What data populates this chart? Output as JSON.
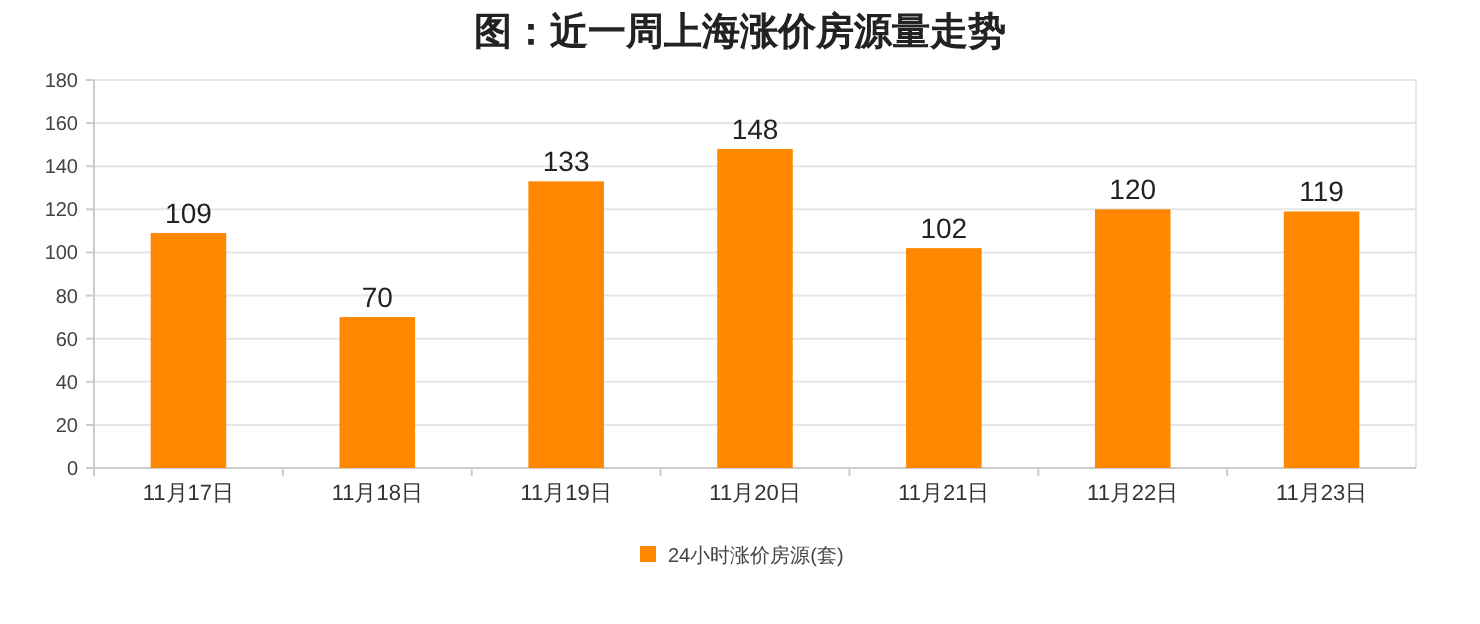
{
  "chart_data": {
    "type": "bar",
    "title": "图：近一周上海涨价房源量走势",
    "categories": [
      "11月17日",
      "11月18日",
      "11月19日",
      "11月20日",
      "11月21日",
      "11月22日",
      "11月23日"
    ],
    "series": [
      {
        "name": "24小时涨价房源(套)",
        "color": "#ff8800",
        "values": [
          109,
          70,
          133,
          148,
          102,
          120,
          119
        ]
      }
    ],
    "ylim": [
      0,
      180
    ],
    "yticks": [
      0,
      20,
      40,
      60,
      80,
      100,
      120,
      140,
      160,
      180
    ],
    "grid": "y",
    "legend": "bottom",
    "data_labels": true
  }
}
